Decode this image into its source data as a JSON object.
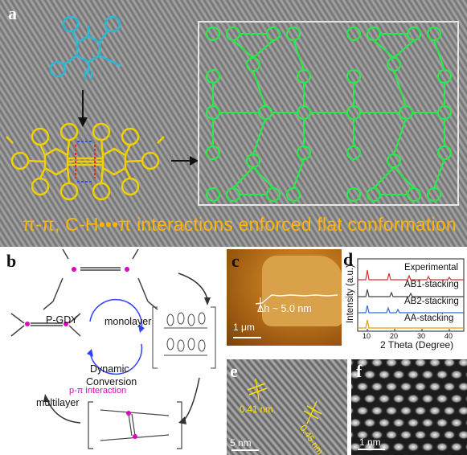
{
  "panels": {
    "a": {
      "letter": "a",
      "caption": "π-π, C-H•••π interactions enforced flat conformation"
    },
    "b": {
      "letter": "b",
      "pgdy_label": "P-GDY",
      "monolayer_label": "monolayer",
      "multilayer_label": "multilayer",
      "dynamic_label": "Dynamic",
      "conversion_label": "Conversion",
      "interaction_label": "p-π interaction",
      "atom_p": "P"
    },
    "c": {
      "letter": "c",
      "height_label": "Δh ~ 5.0 nm",
      "scale_label": "1 μm"
    },
    "d": {
      "letter": "d",
      "ylabel": "Intensity (a.u.)",
      "xlabel": "2 Theta (Degree)",
      "x_ticks": [
        "10",
        "20",
        "30",
        "40"
      ],
      "series_labels": [
        "Experimental",
        "AB1-stacking",
        "AB2-stacking",
        "AA-stacking"
      ],
      "colors": [
        "#d93030",
        "#444444",
        "#2a6fd6",
        "#e0a000"
      ]
    },
    "e": {
      "letter": "e",
      "spacing_1": "0.41 nm",
      "spacing_2": "0.45 nm",
      "scale_label": "5 nm"
    },
    "f": {
      "letter": "f",
      "scale_label": "1 nm"
    }
  }
}
